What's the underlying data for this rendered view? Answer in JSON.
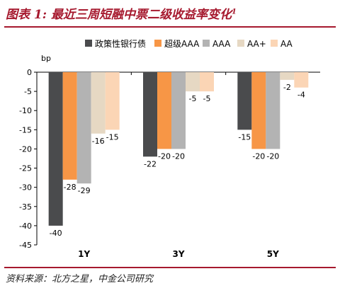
{
  "title": "图表 1: 最近三周短融中票二级收益率变化",
  "title_sup": "1",
  "source": "资料来源：北方之星，中金公司研究",
  "chart_data": {
    "type": "bar",
    "categories": [
      "1Y",
      "3Y",
      "5Y"
    ],
    "series": [
      {
        "name": "政策性银行债",
        "color": "#4a4b4d",
        "values": [
          -40,
          -22,
          -15
        ]
      },
      {
        "name": "超级AAA",
        "color": "#f79646",
        "values": [
          -28,
          -20,
          -20
        ]
      },
      {
        "name": "AAA",
        "color": "#b3b3b3",
        "values": [
          -29,
          -20,
          -20
        ]
      },
      {
        "name": "AA+",
        "color": "#e6d8c3",
        "values": [
          -16,
          -5,
          -2
        ]
      },
      {
        "name": "AA",
        "color": "#fbd5b5",
        "values": [
          -15,
          -5,
          -4
        ]
      }
    ],
    "ylabel": "bp",
    "ylim": [
      -45,
      0
    ],
    "yticks": [
      0,
      -5,
      -10,
      -15,
      -20,
      -25,
      -30,
      -35,
      -40,
      -45
    ],
    "legend_position": "top",
    "grid": false
  }
}
